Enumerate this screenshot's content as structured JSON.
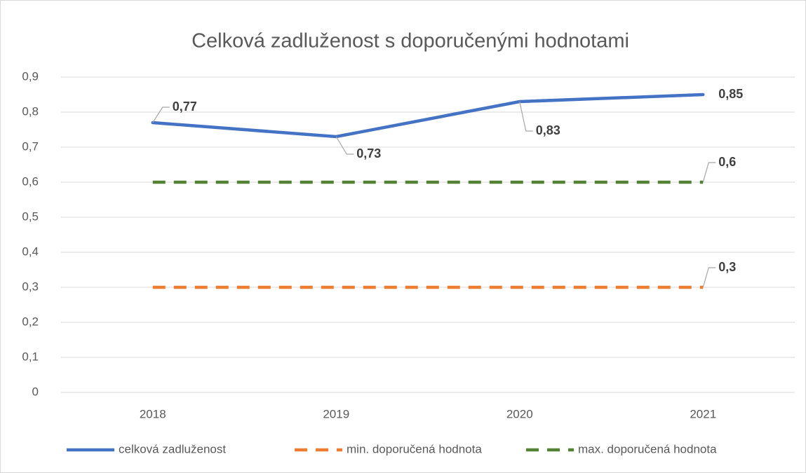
{
  "chart_data": {
    "type": "line",
    "title": "Celková zadluženost s doporučenými hodnotami",
    "categories": [
      "2018",
      "2019",
      "2020",
      "2021"
    ],
    "series": [
      {
        "name": "celková zadluženost",
        "color": "#4472c4",
        "dash": false,
        "values": [
          0.77,
          0.73,
          0.83,
          0.85
        ],
        "value_labels": [
          "0,77",
          "0,73",
          "0,83",
          "0,85"
        ]
      },
      {
        "name": "min. doporučená hodnota",
        "color": "#ed7d31",
        "dash": true,
        "values": [
          0.3,
          0.3,
          0.3,
          0.3
        ],
        "value_labels": [
          null,
          null,
          null,
          "0,3"
        ]
      },
      {
        "name": "max. doporučená hodnota",
        "color": "#548235",
        "dash": true,
        "values": [
          0.6,
          0.6,
          0.6,
          0.6
        ],
        "value_labels": [
          null,
          null,
          null,
          "0,6"
        ]
      }
    ],
    "ylim": [
      0,
      0.9
    ],
    "yticks": [
      0,
      {
        "value": 0.1,
        "label": "0,1"
      },
      {
        "value": 0.2,
        "label": "0,2"
      },
      {
        "value": 0.3,
        "label": "0,3"
      },
      {
        "value": 0.4,
        "label": "0,4"
      },
      {
        "value": 0.5,
        "label": "0,5"
      },
      {
        "value": 0.6,
        "label": "0,6"
      },
      {
        "value": 0.7,
        "label": "0,7"
      },
      {
        "value": 0.8,
        "label": "0,8"
      },
      {
        "value": 0.9,
        "label": "0,9"
      }
    ],
    "grid": true,
    "legend": "bottom"
  }
}
